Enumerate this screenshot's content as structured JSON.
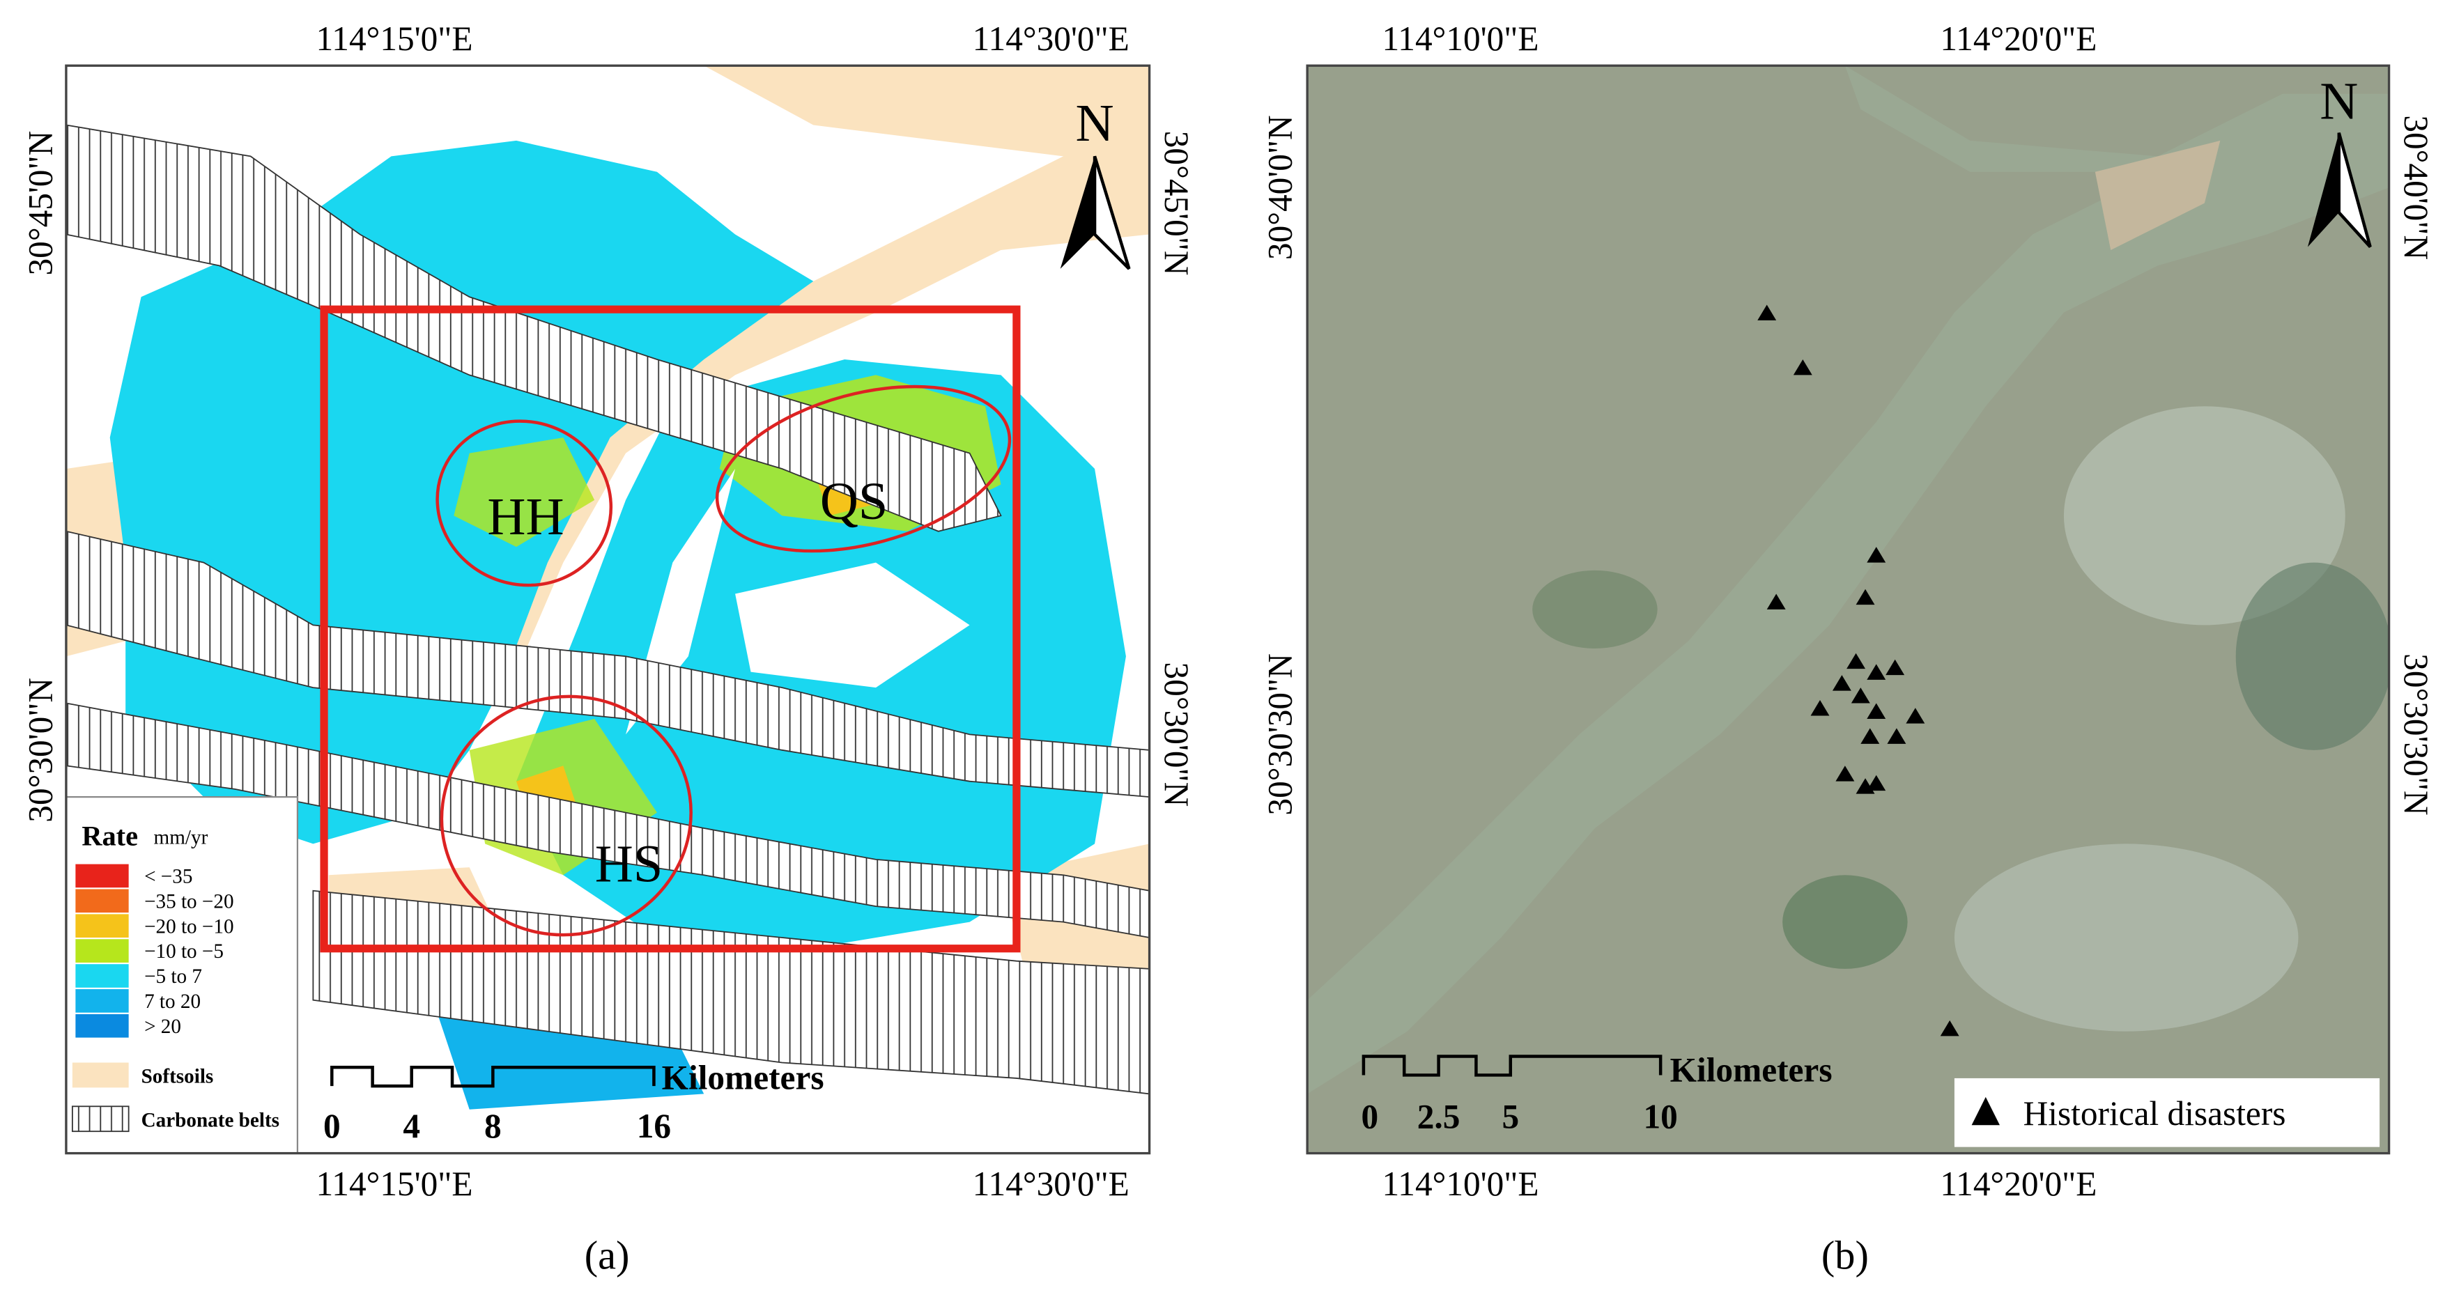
{
  "panel_a": {
    "label": "(a)",
    "top_ticks": [
      "114°15'0\"E",
      "114°30'0\"E"
    ],
    "bottom_ticks": [
      "114°15'0\"E",
      "114°30'0\"E"
    ],
    "left_ticks": [
      "30°45'0\"N",
      "30°30'0\"N"
    ],
    "right_ticks": [
      "30°45'0\"N",
      "30°30'0\"N"
    ],
    "north": "N",
    "regions": [
      "HH",
      "QS",
      "HS"
    ],
    "legend": {
      "title": "Rate",
      "unit": "mm/yr",
      "items": [
        {
          "label": "< −35",
          "color": "#e8231b"
        },
        {
          "label": "−35  to −20",
          "color": "#f26a1b"
        },
        {
          "label": "−20  to −10",
          "color": "#f5c31a"
        },
        {
          "label": "−10  to −5",
          "color": "#b6e61c"
        },
        {
          "label": "−5  to 7",
          "color": "#1ad7f0"
        },
        {
          "label": "7  to 20",
          "color": "#12b3ec"
        },
        {
          "label": "> 20",
          "color": "#0a8ae0"
        }
      ],
      "softsoils": "Softsoils",
      "carbonate": "Carbonate belts"
    },
    "scale": {
      "unit": "Kilometers",
      "ticks": [
        "0",
        "4",
        "8",
        "16"
      ]
    }
  },
  "panel_b": {
    "label": "(b)",
    "top_ticks": [
      "114°10'0\"E",
      "114°20'0\"E"
    ],
    "bottom_ticks": [
      "114°10'0\"E",
      "114°20'0\"E"
    ],
    "left_ticks": [
      "30°40'0\"N",
      "30°30'30\"N"
    ],
    "right_ticks": [
      "30°40'0\"N",
      "30°30'30\"N"
    ],
    "north": "N",
    "legend": "Historical disasters",
    "scale": {
      "unit": "Kilometers",
      "ticks": [
        "0",
        "2.5",
        "5",
        "10"
      ]
    }
  }
}
